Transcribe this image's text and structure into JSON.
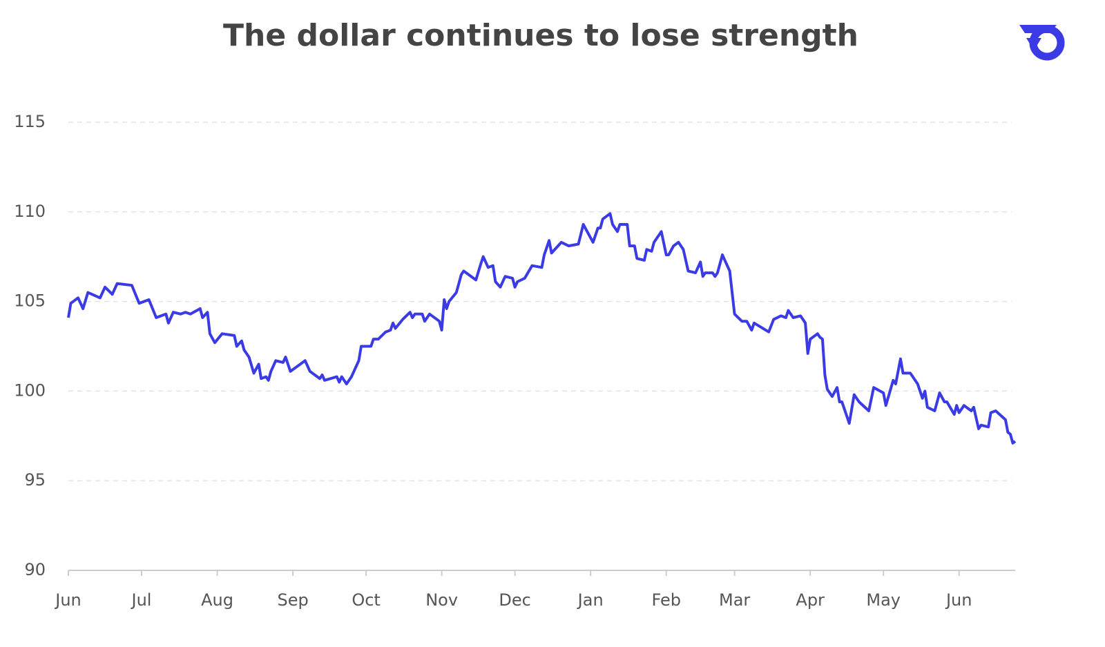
{
  "chart_data": {
    "type": "line",
    "title": "The dollar continues to lose strength",
    "xlim": [
      0,
      388
    ],
    "xticks": [
      {
        "value": 0,
        "label": "Jun"
      },
      {
        "value": 30,
        "label": "Jul"
      },
      {
        "value": 61,
        "label": "Aug"
      },
      {
        "value": 92,
        "label": "Sep"
      },
      {
        "value": 122,
        "label": "Oct"
      },
      {
        "value": 153,
        "label": "Nov"
      },
      {
        "value": 183,
        "label": "Dec"
      },
      {
        "value": 214,
        "label": "Jan"
      },
      {
        "value": 245,
        "label": "Feb"
      },
      {
        "value": 273,
        "label": "Mar"
      },
      {
        "value": 304,
        "label": "Apr"
      },
      {
        "value": 334,
        "label": "May"
      },
      {
        "value": 365,
        "label": "Jun"
      }
    ],
    "ylim": [
      90,
      115
    ],
    "yticks": [
      90,
      95,
      100,
      105,
      110,
      115
    ],
    "grid": true,
    "series": [
      {
        "color": "#3b3be6",
        "x": [
          0,
          1,
          4,
          6,
          8,
          13,
          15,
          18,
          20,
          26,
          29,
          33,
          36,
          40,
          41,
          43,
          46,
          48,
          50,
          54,
          55,
          57,
          58,
          60,
          63,
          68,
          69,
          71,
          72,
          74,
          76,
          78,
          79,
          81,
          82,
          83,
          85,
          88,
          89,
          91,
          95,
          97,
          99,
          103,
          104,
          105,
          110,
          111,
          112,
          114,
          116,
          119,
          120,
          124,
          125,
          127,
          130,
          132,
          133,
          134,
          137,
          140,
          141,
          142,
          145,
          146,
          148,
          152,
          153,
          154,
          155,
          156,
          159,
          161,
          162,
          167,
          169,
          170,
          172,
          174,
          175,
          177,
          179,
          182,
          183,
          184,
          187,
          190,
          194,
          195,
          197,
          198,
          202,
          205,
          209,
          211,
          215,
          217,
          218,
          219,
          222,
          223,
          225,
          226,
          229,
          230,
          232,
          233,
          236,
          237,
          239,
          240,
          243,
          245,
          246,
          248,
          250,
          252,
          254,
          257,
          259,
          260,
          261,
          264,
          265,
          266,
          268,
          269,
          271,
          273,
          276,
          278,
          280,
          281,
          287,
          289,
          292,
          294,
          295,
          297,
          300,
          302,
          303,
          304,
          307,
          308,
          309,
          310,
          311,
          313,
          315,
          316,
          317,
          320,
          322,
          324,
          328,
          330,
          334,
          335,
          338,
          339,
          341,
          342,
          345,
          348,
          350,
          351,
          352,
          355,
          357,
          359,
          360,
          363,
          364,
          365,
          367,
          370,
          371,
          373,
          374,
          377,
          378,
          380,
          384,
          385,
          386,
          387,
          388
        ],
        "values": [
          104.1,
          104.9,
          105.2,
          104.6,
          105.5,
          105.2,
          105.8,
          105.4,
          106.0,
          105.9,
          104.9,
          105.1,
          104.1,
          104.3,
          103.8,
          104.4,
          104.3,
          104.4,
          104.3,
          104.6,
          104.1,
          104.4,
          103.2,
          102.7,
          103.2,
          103.1,
          102.5,
          102.8,
          102.3,
          101.9,
          101.0,
          101.5,
          100.7,
          100.8,
          100.6,
          101.1,
          101.7,
          101.6,
          101.9,
          101.1,
          101.5,
          101.7,
          101.1,
          100.7,
          100.9,
          100.6,
          100.8,
          100.5,
          100.8,
          100.4,
          100.8,
          101.7,
          102.5,
          102.5,
          102.9,
          102.9,
          103.3,
          103.4,
          103.8,
          103.5,
          104.0,
          104.4,
          104.1,
          104.3,
          104.3,
          103.9,
          104.3,
          103.9,
          103.4,
          105.1,
          104.6,
          105.0,
          105.5,
          106.5,
          106.7,
          106.2,
          107.1,
          107.5,
          106.9,
          107.0,
          106.1,
          105.8,
          106.4,
          106.3,
          105.8,
          106.1,
          106.3,
          107.0,
          106.9,
          107.6,
          108.4,
          107.7,
          108.3,
          108.1,
          108.2,
          109.3,
          108.3,
          109.1,
          109.1,
          109.6,
          109.9,
          109.3,
          108.9,
          109.3,
          109.3,
          108.1,
          108.1,
          107.4,
          107.3,
          107.9,
          107.8,
          108.3,
          108.9,
          107.6,
          107.6,
          108.1,
          108.3,
          107.9,
          106.7,
          106.6,
          107.2,
          106.4,
          106.6,
          106.6,
          106.4,
          106.6,
          107.6,
          107.3,
          106.7,
          104.3,
          103.9,
          103.9,
          103.4,
          103.8,
          103.3,
          104.0,
          104.2,
          104.1,
          104.5,
          104.1,
          104.2,
          103.8,
          102.1,
          102.9,
          103.2,
          103.0,
          102.9,
          100.9,
          100.1,
          99.7,
          100.2,
          99.4,
          99.4,
          98.2,
          99.8,
          99.4,
          98.9,
          100.2,
          99.9,
          99.2,
          100.6,
          100.4,
          101.8,
          101.0,
          101.0,
          100.4,
          99.6,
          100.0,
          99.1,
          98.9,
          99.9,
          99.4,
          99.4,
          98.7,
          99.2,
          98.8,
          99.2,
          98.9,
          99.1,
          97.9,
          98.1,
          98.0,
          98.8,
          98.9,
          98.4,
          97.7,
          97.6,
          97.1,
          97.2
        ]
      }
    ]
  }
}
